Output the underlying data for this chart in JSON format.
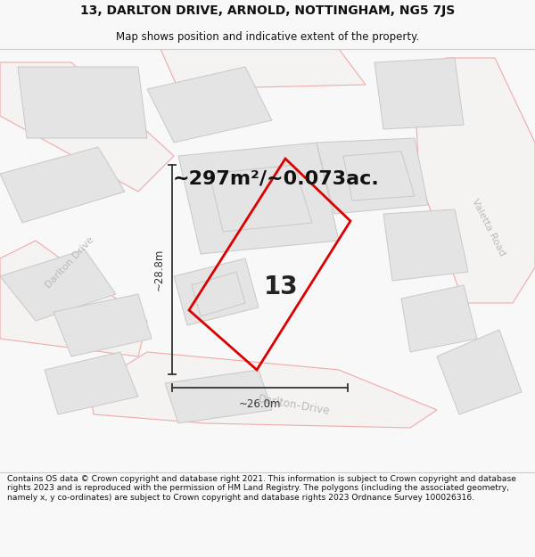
{
  "title_line1": "13, DARLTON DRIVE, ARNOLD, NOTTINGHAM, NG5 7JS",
  "title_line2": "Map shows position and indicative extent of the property.",
  "area_text": "~297m²/~0.073ac.",
  "number_label": "13",
  "dim_height": "~28.8m",
  "dim_width": "~26.0m",
  "footer_text": "Contains OS data © Crown copyright and database right 2021. This information is subject to Crown copyright and database rights 2023 and is reproduced with the permission of HM Land Registry. The polygons (including the associated geometry, namely x, y co-ordinates) are subject to Crown copyright and database rights 2023 Ordnance Survey 100026316.",
  "bg_color": "#f8f8f8",
  "map_bg_color": "#f8f8f8",
  "road_stroke_color": "#f0aaaa",
  "road_fill_color": "#f5f5f5",
  "building_fill": "#e4e4e4",
  "building_edge": "#c8c8c8",
  "plot_outline_color": "#dd0000",
  "dimension_color": "#333333",
  "road_label_color": "#bbbbbb",
  "title_color": "#111111",
  "footer_color": "#111111",
  "separator_color": "#cccccc"
}
